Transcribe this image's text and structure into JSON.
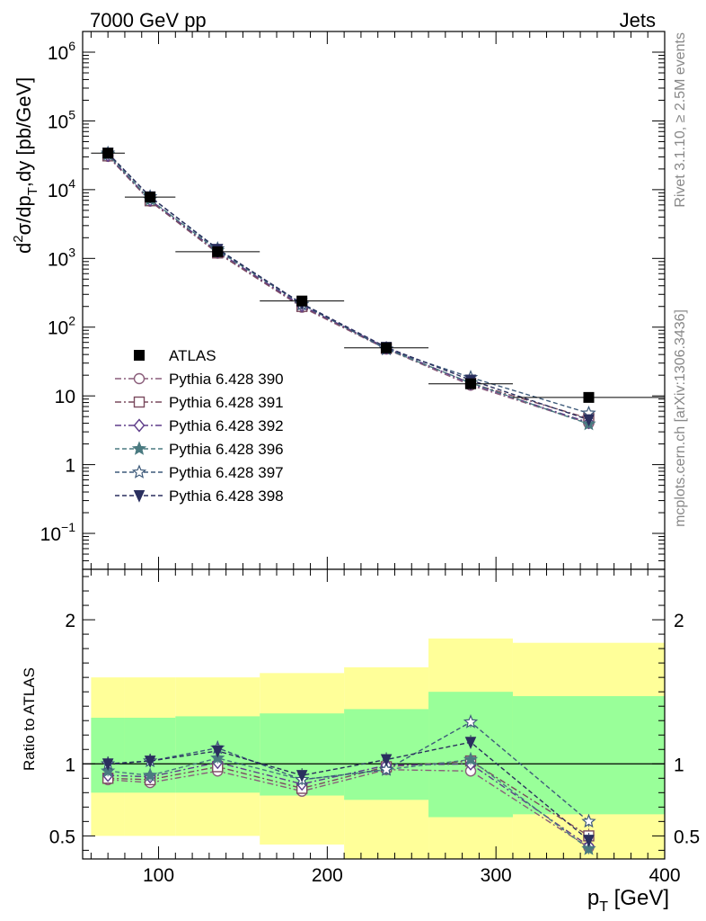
{
  "header": {
    "left": "7000 GeV pp",
    "right": "Jets"
  },
  "side_labels": {
    "rivet": "Rivet 3.1.10, ≥ 2.5M events",
    "mcplots": "mcplots.cern.ch [arXiv:1306.3436]"
  },
  "analysis_id": "ATLAS_2010_S8817804",
  "main_ylabel": {
    "prefix": "d",
    "sup2": "2",
    "sigma": "σ/dp",
    "sub_t": "T",
    "rest": ",dy [pb/GeV]"
  },
  "ratio_ylabel": "Ratio to ATLAS",
  "xlabel": {
    "p": "p",
    "sub": "T",
    "unit": " [GeV]"
  },
  "colors": {
    "data": "#000000",
    "band_inner": "#99ff99",
    "band_outer": "#ffff99",
    "s390": "#8a5d7a",
    "s391": "#7a4a5e",
    "s392": "#5e3d8a",
    "s396": "#4a7a80",
    "s397": "#3d5a7a",
    "s398": "#2a2f5e"
  },
  "chart_data": [
    {
      "type": "line",
      "panel": "main",
      "x_scale": "linear",
      "y_scale": "log",
      "xlim": [
        55,
        400
      ],
      "ylim": [
        0.03,
        2000000
      ],
      "y_ticks": [
        {
          "value": 0.1,
          "base": "10",
          "exp": "−1"
        },
        {
          "value": 1,
          "label": "1"
        },
        {
          "value": 10,
          "label": "10"
        },
        {
          "value": 100,
          "base": "10",
          "exp": "2"
        },
        {
          "value": 1000,
          "base": "10",
          "exp": "3"
        },
        {
          "value": 10000,
          "base": "10",
          "exp": "4"
        },
        {
          "value": 100000,
          "base": "10",
          "exp": "5"
        },
        {
          "value": 1000000,
          "base": "10",
          "exp": "6"
        }
      ],
      "legend_position": "lower-left",
      "x": [
        70,
        95,
        135,
        185,
        235,
        285,
        355
      ],
      "x_edges": [
        60,
        80,
        110,
        160,
        210,
        260,
        310,
        400
      ],
      "data_series": {
        "name": "ATLAS",
        "values": [
          34000,
          7800,
          1250,
          240,
          50,
          15,
          9.5
        ]
      },
      "series": [
        {
          "name": "Pythia 6.428 390",
          "key": "s390",
          "marker": "circle-open",
          "dash": "dashdot",
          "values": [
            30500,
            6800,
            1190,
            195,
            48,
            14.3,
            4.0
          ]
        },
        {
          "name": "Pythia 6.428 391",
          "key": "s391",
          "marker": "square-open",
          "dash": "dashdot",
          "values": [
            31000,
            6900,
            1200,
            200,
            49,
            15.3,
            4.7
          ]
        },
        {
          "name": "Pythia 6.428 392",
          "key": "s392",
          "marker": "diamond-open",
          "dash": "dashdot",
          "values": [
            31500,
            7100,
            1260,
            205,
            50,
            15.0,
            4.1
          ]
        },
        {
          "name": "Pythia 6.428 396",
          "key": "s396",
          "marker": "star-filled",
          "dash": "dashed",
          "values": [
            32500,
            7200,
            1300,
            215,
            48,
            15.5,
            3.9
          ]
        },
        {
          "name": "Pythia 6.428 397",
          "key": "s397",
          "marker": "star-open",
          "dash": "dashed",
          "values": [
            34000,
            7900,
            1380,
            215,
            48,
            18.5,
            5.6
          ]
        },
        {
          "name": "Pythia 6.428 398",
          "key": "s398",
          "marker": "triangle-down-filled",
          "dash": "dashed",
          "values": [
            34000,
            7900,
            1360,
            220,
            51,
            17.0,
            4.5
          ]
        }
      ]
    },
    {
      "type": "line",
      "panel": "ratio",
      "x_scale": "linear",
      "y_scale": "linear",
      "xlim": [
        55,
        400
      ],
      "ylim": [
        0.34,
        2.35
      ],
      "x_ticks": [
        100,
        200,
        300,
        400
      ],
      "y_ticks": [
        {
          "value": 0.5,
          "label": "0.5"
        },
        {
          "value": 1,
          "label": "1"
        },
        {
          "value": 2,
          "label": "2"
        }
      ],
      "reference_line": 1,
      "x": [
        70,
        95,
        135,
        185,
        235,
        285,
        355
      ],
      "band_inner": [
        [
          0.8,
          1.32
        ],
        [
          0.8,
          1.32
        ],
        [
          0.8,
          1.33
        ],
        [
          0.78,
          1.35
        ],
        [
          0.75,
          1.38
        ],
        [
          0.63,
          1.5
        ],
        [
          0.65,
          1.47
        ]
      ],
      "band_outer": [
        [
          0.5,
          1.6
        ],
        [
          0.5,
          1.6
        ],
        [
          0.5,
          1.6
        ],
        [
          0.44,
          1.63
        ],
        [
          0.34,
          1.67
        ],
        [
          0.34,
          1.87
        ],
        [
          0.34,
          1.84
        ]
      ],
      "series": [
        {
          "key": "s390",
          "values": [
            0.89,
            0.87,
            0.95,
            0.81,
            0.96,
            0.95,
            0.42
          ]
        },
        {
          "key": "s391",
          "values": [
            0.9,
            0.89,
            0.98,
            0.83,
            0.98,
            1.02,
            0.5
          ]
        },
        {
          "key": "s392",
          "values": [
            0.92,
            0.91,
            1.01,
            0.86,
            0.99,
            1.0,
            0.43
          ]
        },
        {
          "key": "s396",
          "values": [
            0.95,
            0.92,
            1.04,
            0.89,
            0.96,
            1.03,
            0.41
          ]
        },
        {
          "key": "s397",
          "values": [
            1.0,
            1.02,
            1.11,
            0.89,
            0.96,
            1.29,
            0.6
          ]
        },
        {
          "key": "s398",
          "values": [
            1.0,
            1.02,
            1.09,
            0.92,
            1.03,
            1.15,
            0.47
          ]
        }
      ]
    }
  ]
}
